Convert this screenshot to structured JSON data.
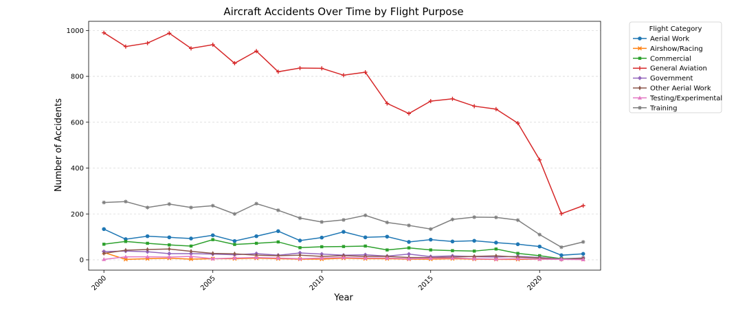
{
  "chart_data": {
    "type": "line",
    "title": "Aircraft Accidents Over Time by Flight Purpose",
    "xlabel": "Year",
    "ylabel": "Number of Accidents",
    "xlim": [
      1999.3,
      2022.8
    ],
    "ylim": [
      -45,
      1040
    ],
    "x_ticks": [
      2000,
      2005,
      2010,
      2015,
      2020
    ],
    "y_ticks": [
      0,
      200,
      400,
      600,
      800,
      1000
    ],
    "grid": "horizontal dashed",
    "legend_title": "Flight Category",
    "legend_position": "outside-right",
    "x": [
      2000,
      2001,
      2002,
      2003,
      2004,
      2005,
      2006,
      2007,
      2008,
      2009,
      2010,
      2011,
      2012,
      2013,
      2014,
      2015,
      2016,
      2017,
      2018,
      2019,
      2020,
      2021,
      2022
    ],
    "series": [
      {
        "name": "Aerial Work",
        "color": "#1f77b4",
        "marker": "circle",
        "values": [
          134,
          90,
          103,
          98,
          93,
          107,
          82,
          103,
          125,
          84,
          97,
          122,
          98,
          101,
          78,
          88,
          80,
          83,
          75,
          68,
          58,
          20,
          26
        ]
      },
      {
        "name": "Airshow/Racing",
        "color": "#ff7f0e",
        "marker": "x",
        "values": [
          32,
          2,
          5,
          7,
          3,
          5,
          5,
          7,
          5,
          3,
          3,
          7,
          5,
          5,
          3,
          3,
          5,
          3,
          2,
          2,
          3,
          3,
          2
        ]
      },
      {
        "name": "Commercial",
        "color": "#2ca02c",
        "marker": "square",
        "values": [
          68,
          80,
          72,
          65,
          60,
          88,
          67,
          72,
          78,
          53,
          57,
          58,
          60,
          43,
          52,
          43,
          40,
          38,
          47,
          28,
          18,
          5,
          8
        ]
      },
      {
        "name": "General Aviation",
        "color": "#d62728",
        "marker": "plus",
        "values": [
          990,
          930,
          945,
          988,
          922,
          938,
          857,
          910,
          820,
          836,
          835,
          805,
          818,
          682,
          638,
          692,
          702,
          670,
          657,
          596,
          436,
          201,
          236
        ]
      },
      {
        "name": "Government",
        "color": "#9467bd",
        "marker": "diamond",
        "values": [
          36,
          38,
          35,
          27,
          27,
          25,
          22,
          27,
          20,
          30,
          25,
          20,
          22,
          16,
          25,
          14,
          17,
          14,
          12,
          15,
          10,
          3,
          8
        ]
      },
      {
        "name": "Other Aerial Work",
        "color": "#8c564b",
        "marker": "thin-diamond",
        "values": [
          28,
          42,
          45,
          47,
          37,
          28,
          26,
          20,
          18,
          20,
          15,
          18,
          15,
          15,
          10,
          10,
          12,
          15,
          17,
          12,
          8,
          2,
          6
        ]
      },
      {
        "name": "Testing/Experimental",
        "color": "#e377c2",
        "marker": "triangle",
        "values": [
          2,
          13,
          13,
          12,
          15,
          5,
          8,
          10,
          8,
          5,
          8,
          10,
          8,
          8,
          5,
          7,
          8,
          5,
          3,
          5,
          3,
          2,
          1
        ]
      },
      {
        "name": "Training",
        "color": "#7f7f7f",
        "marker": "star",
        "values": [
          250,
          254,
          228,
          243,
          228,
          236,
          200,
          245,
          216,
          182,
          165,
          174,
          194,
          163,
          150,
          134,
          176,
          186,
          185,
          173,
          110,
          55,
          78
        ]
      }
    ]
  }
}
